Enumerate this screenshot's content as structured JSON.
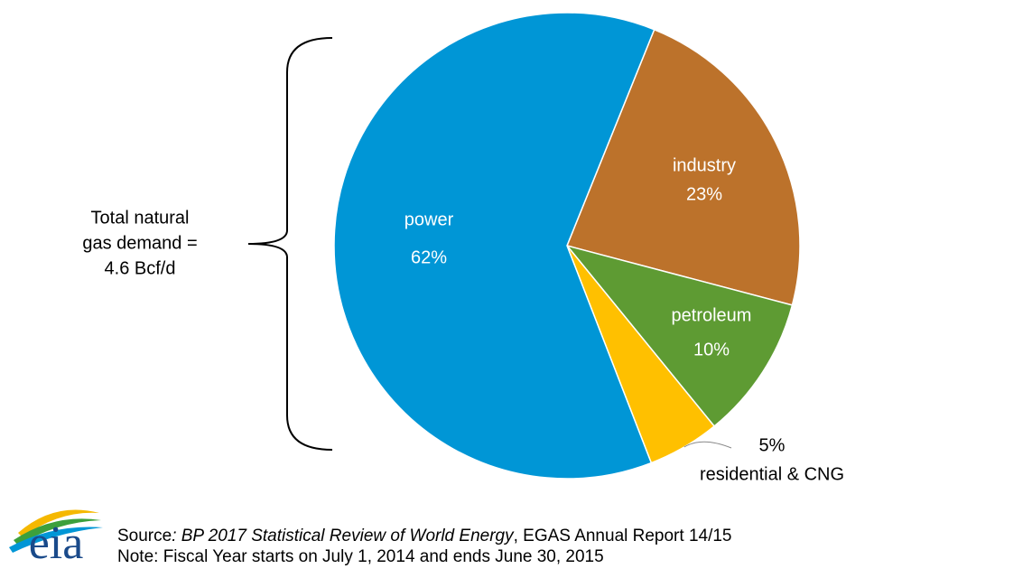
{
  "chart_data": {
    "type": "pie",
    "categories": [
      "industry",
      "petroleum",
      "residential & CNG",
      "power"
    ],
    "values": [
      23,
      10,
      5,
      62
    ],
    "value_labels": [
      "23%",
      "10%",
      "5%",
      "62%"
    ],
    "colors": [
      "#bc722b",
      "#5e9b33",
      "#ffc000",
      "#0096d6"
    ],
    "annotation": [
      "Total natural",
      "gas demand =",
      "4.6 Bcf/d"
    ],
    "source": {
      "prefix": "Source",
      "italic": ": BP 2017 Statistical Review of World Energy",
      "rest": ", EGAS Annual  Report 14/15"
    },
    "note": "Note: Fiscal Year starts on July 1, 2014 and ends June 30, 2015",
    "logo": "eia"
  }
}
